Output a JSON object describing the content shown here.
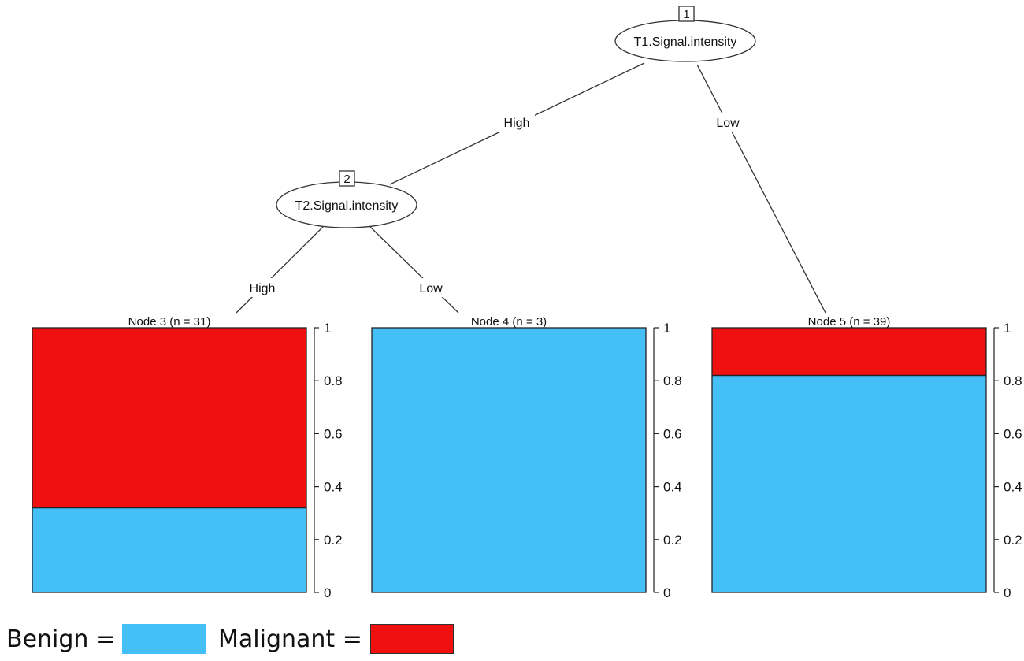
{
  "colors": {
    "benign": "#45c0f6",
    "malignant": "#f01010",
    "line": "#333333"
  },
  "nodes": [
    {
      "id": "1",
      "label": "T1.Signal.intensity"
    },
    {
      "id": "2",
      "label": "T2.Signal.intensity"
    }
  ],
  "edges": [
    {
      "from": "1",
      "to": "2",
      "label": "High"
    },
    {
      "from": "1",
      "to": "5",
      "label": "Low"
    },
    {
      "from": "2",
      "to": "3",
      "label": "High"
    },
    {
      "from": "2",
      "to": "4",
      "label": "Low"
    }
  ],
  "chart_data": [
    {
      "type": "bar",
      "title": "Node 3 (n = 31)",
      "ylim": [
        0,
        1
      ],
      "yticks": [
        "0",
        "0.2",
        "0.4",
        "0.6",
        "0.8",
        "1"
      ],
      "series": [
        {
          "name": "Benign",
          "values": [
            0.32
          ]
        },
        {
          "name": "Malignant",
          "values": [
            0.68
          ]
        }
      ]
    },
    {
      "type": "bar",
      "title": "Node 4 (n = 3)",
      "ylim": [
        0,
        1
      ],
      "yticks": [
        "0",
        "0.2",
        "0.4",
        "0.6",
        "0.8",
        "1"
      ],
      "series": [
        {
          "name": "Benign",
          "values": [
            1.0
          ]
        },
        {
          "name": "Malignant",
          "values": [
            0.0
          ]
        }
      ]
    },
    {
      "type": "bar",
      "title": "Node 5 (n = 39)",
      "ylim": [
        0,
        1
      ],
      "yticks": [
        "0",
        "0.2",
        "0.4",
        "0.6",
        "0.8",
        "1"
      ],
      "series": [
        {
          "name": "Benign",
          "values": [
            0.82
          ]
        },
        {
          "name": "Malignant",
          "values": [
            0.18
          ]
        }
      ]
    }
  ],
  "legend": {
    "benign_label": "Benign =",
    "malignant_label": "Malignant ="
  }
}
